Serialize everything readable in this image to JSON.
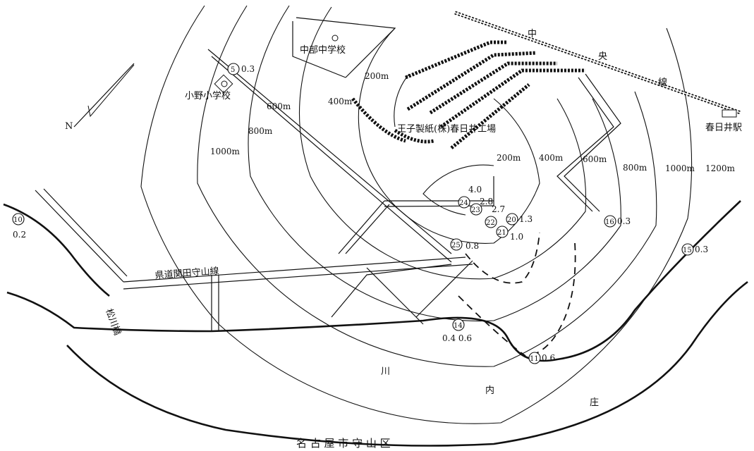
{
  "map": {
    "district_caption": "名 古 屋 市 守 山 区",
    "north_label": "N",
    "factory_label": "王子製紙(株)春日井工場",
    "school_chubu": "中部中学校",
    "school_ono": "小野小学校",
    "station_label": "春日井駅",
    "railway_chars": [
      "中",
      "央",
      "線"
    ],
    "prefectural_road": "県道関田守山線",
    "bridge_label": "松川橋",
    "river_chars": [
      "川",
      "内",
      "庄"
    ],
    "distance_rings_upper": [
      "200m",
      "400m",
      "600m",
      "800m",
      "1000m"
    ],
    "distance_rings_lower": [
      "200m",
      "400m",
      "600m",
      "800m",
      "1000m",
      "1200m"
    ],
    "points": [
      {
        "id": "5",
        "value": "0.3"
      },
      {
        "id": "10",
        "value": "0.2"
      },
      {
        "id": "24",
        "value": "2.8"
      },
      {
        "id": "23",
        "value": "2.7"
      },
      {
        "id": "22",
        "value": ""
      },
      {
        "id": "20",
        "value": "1.3"
      },
      {
        "id": "21",
        "value": "1.0"
      },
      {
        "id": "25",
        "value": "0.8"
      },
      {
        "id": "16",
        "value": "0.3"
      },
      {
        "id": "15",
        "value": "0.3"
      },
      {
        "id": "14",
        "value": "0.4 0.6"
      },
      {
        "id": "11",
        "value": "0.6"
      }
    ],
    "extra_value_near_24": "4.0"
  }
}
